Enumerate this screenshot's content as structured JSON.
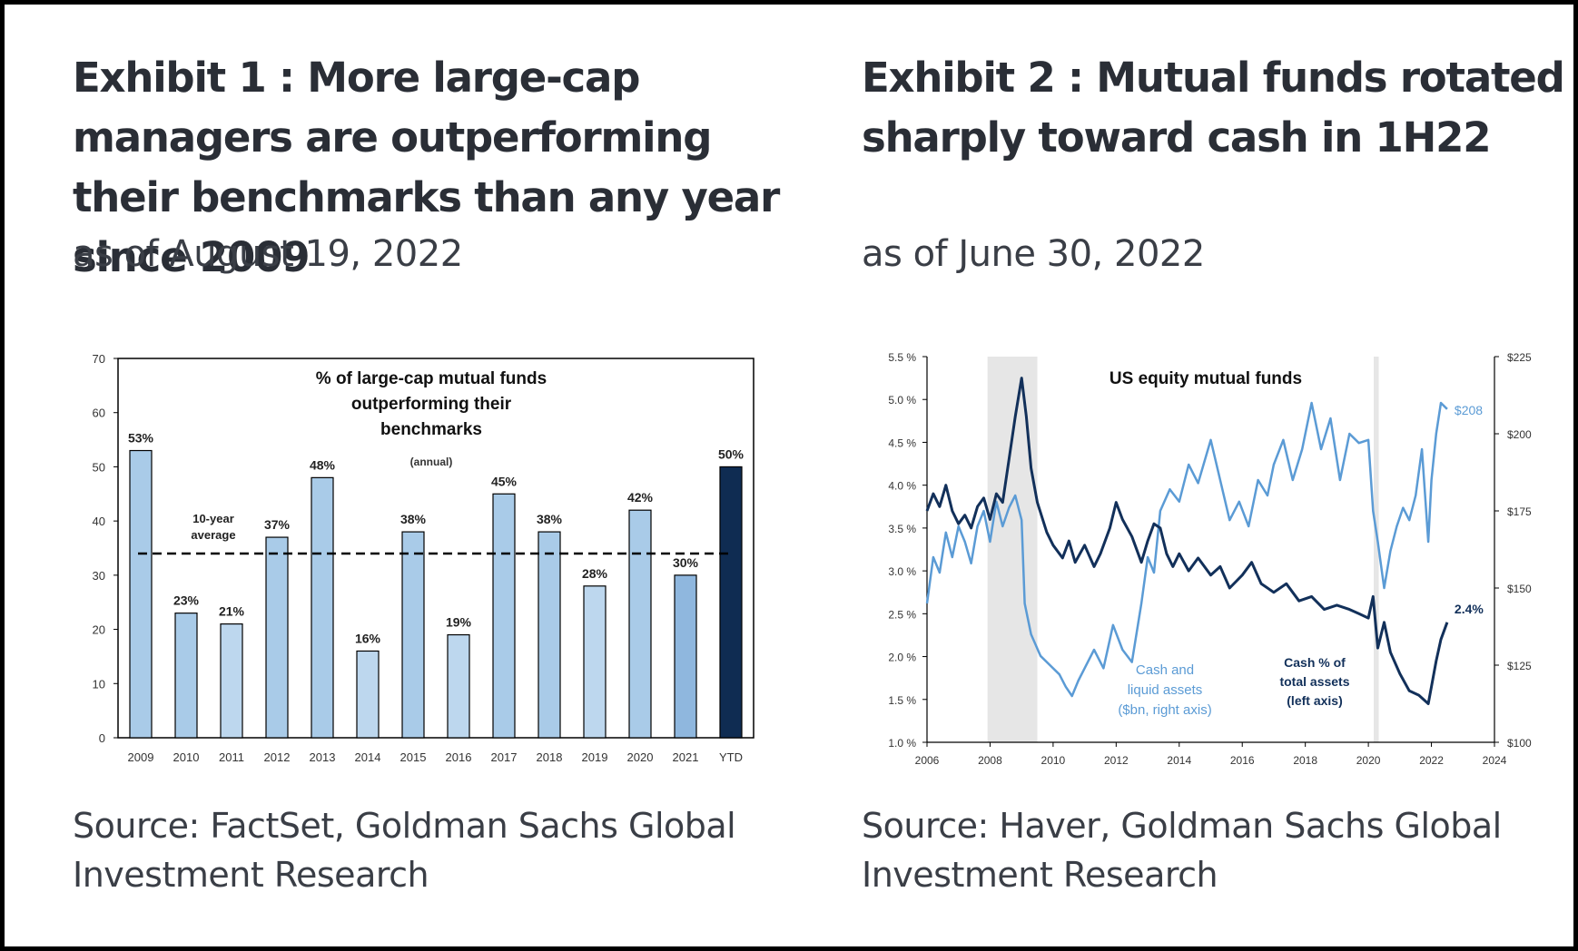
{
  "exhibit1": {
    "title": "Exhibit 1 : More large-cap managers are outperforming their benchmarks than any year since 2009",
    "asof": "as of August 19, 2022",
    "source": "Source: FactSet, Goldman Sachs Global Investment Research"
  },
  "exhibit2": {
    "title": "Exhibit 2 : Mutual funds rotated sharply toward cash in 1H22",
    "asof": "as of June 30, 2022",
    "source": "Source: Haver, Goldman Sachs Global Investment Research"
  },
  "chart_data": [
    {
      "type": "bar",
      "title_lines": [
        "% of large-cap mutual funds",
        "outperforming their",
        "benchmarks"
      ],
      "subtitle": "(annual)",
      "categories": [
        "2009",
        "2010",
        "2011",
        "2012",
        "2013",
        "2014",
        "2015",
        "2016",
        "2017",
        "2018",
        "2019",
        "2020",
        "2021",
        "YTD"
      ],
      "values": [
        53,
        23,
        21,
        37,
        48,
        16,
        38,
        19,
        45,
        38,
        28,
        42,
        30,
        50
      ],
      "value_labels": [
        "53%",
        "23%",
        "21%",
        "37%",
        "48%",
        "16%",
        "38%",
        "19%",
        "45%",
        "38%",
        "28%",
        "42%",
        "30%",
        "50%"
      ],
      "bar_colors": [
        "#a9cbe8",
        "#a9cbe8",
        "#bdd7ee",
        "#a9cbe8",
        "#a9cbe8",
        "#bdd7ee",
        "#a9cbe8",
        "#bdd7ee",
        "#a9cbe8",
        "#a9cbe8",
        "#bdd7ee",
        "#a9cbe8",
        "#8fb7de",
        "#0f2c52"
      ],
      "ylim": [
        0,
        70
      ],
      "yticks": [
        0,
        10,
        20,
        30,
        40,
        50,
        60,
        70
      ],
      "reference_line": {
        "value": 34,
        "label_lines": [
          "10-year",
          "average"
        ]
      }
    },
    {
      "type": "line",
      "title": "US equity mutual funds",
      "x_range": [
        2006,
        2024
      ],
      "xticks": [
        "2006",
        "2008",
        "2010",
        "2012",
        "2014",
        "2016",
        "2018",
        "2020",
        "2022",
        "2024"
      ],
      "left_axis": {
        "range": [
          1.0,
          5.5
        ],
        "ticks": [
          "1.0 %",
          "1.5 %",
          "2.0 %",
          "2.5 %",
          "3.0 %",
          "3.5 %",
          "4.0 %",
          "4.5 %",
          "5.0 %",
          "5.5 %"
        ]
      },
      "right_axis": {
        "range": [
          100,
          225
        ],
        "ticks": [
          "$100",
          "$125",
          "$150",
          "$175",
          "$200",
          "$225"
        ]
      },
      "recessions": [
        [
          2007.92,
          2009.5
        ],
        [
          2020.17,
          2020.33
        ]
      ],
      "series": [
        {
          "name": "Cash % of total assets (left axis)",
          "name_lines": [
            "Cash % of",
            "total assets",
            "(left axis)"
          ],
          "axis": "left",
          "color": "#12305a",
          "end_label": "2.4%",
          "points": [
            [
              2006.0,
              3.7
            ],
            [
              2006.2,
              3.9
            ],
            [
              2006.4,
              3.75
            ],
            [
              2006.6,
              4.0
            ],
            [
              2006.8,
              3.7
            ],
            [
              2007.0,
              3.55
            ],
            [
              2007.2,
              3.65
            ],
            [
              2007.4,
              3.5
            ],
            [
              2007.6,
              3.75
            ],
            [
              2007.8,
              3.85
            ],
            [
              2008.0,
              3.6
            ],
            [
              2008.2,
              3.9
            ],
            [
              2008.4,
              3.8
            ],
            [
              2008.6,
              4.3
            ],
            [
              2008.8,
              4.8
            ],
            [
              2009.0,
              5.25
            ],
            [
              2009.15,
              4.8
            ],
            [
              2009.3,
              4.2
            ],
            [
              2009.5,
              3.8
            ],
            [
              2009.8,
              3.45
            ],
            [
              2010.0,
              3.3
            ],
            [
              2010.3,
              3.15
            ],
            [
              2010.5,
              3.35
            ],
            [
              2010.7,
              3.1
            ],
            [
              2011.0,
              3.3
            ],
            [
              2011.3,
              3.05
            ],
            [
              2011.5,
              3.2
            ],
            [
              2011.8,
              3.5
            ],
            [
              2012.0,
              3.8
            ],
            [
              2012.2,
              3.6
            ],
            [
              2012.5,
              3.4
            ],
            [
              2012.8,
              3.1
            ],
            [
              2013.0,
              3.35
            ],
            [
              2013.2,
              3.55
            ],
            [
              2013.4,
              3.5
            ],
            [
              2013.6,
              3.2
            ],
            [
              2013.8,
              3.05
            ],
            [
              2014.0,
              3.2
            ],
            [
              2014.3,
              3.0
            ],
            [
              2014.6,
              3.15
            ],
            [
              2015.0,
              2.95
            ],
            [
              2015.3,
              3.05
            ],
            [
              2015.6,
              2.8
            ],
            [
              2016.0,
              2.95
            ],
            [
              2016.3,
              3.1
            ],
            [
              2016.6,
              2.85
            ],
            [
              2017.0,
              2.75
            ],
            [
              2017.4,
              2.85
            ],
            [
              2017.8,
              2.65
            ],
            [
              2018.2,
              2.7
            ],
            [
              2018.6,
              2.55
            ],
            [
              2019.0,
              2.6
            ],
            [
              2019.4,
              2.55
            ],
            [
              2019.7,
              2.5
            ],
            [
              2020.0,
              2.45
            ],
            [
              2020.15,
              2.7
            ],
            [
              2020.3,
              2.1
            ],
            [
              2020.5,
              2.4
            ],
            [
              2020.7,
              2.05
            ],
            [
              2021.0,
              1.8
            ],
            [
              2021.3,
              1.6
            ],
            [
              2021.6,
              1.55
            ],
            [
              2021.9,
              1.45
            ],
            [
              2022.0,
              1.65
            ],
            [
              2022.15,
              1.95
            ],
            [
              2022.3,
              2.2
            ],
            [
              2022.5,
              2.4
            ]
          ]
        },
        {
          "name": "Cash and liquid assets ($bn, right axis)",
          "name_lines": [
            "Cash and",
            "liquid assets",
            "($bn, right axis)"
          ],
          "axis": "right",
          "color": "#5b9bd5",
          "end_label": "$208",
          "points": [
            [
              2006.0,
              145
            ],
            [
              2006.2,
              160
            ],
            [
              2006.4,
              155
            ],
            [
              2006.6,
              168
            ],
            [
              2006.8,
              160
            ],
            [
              2007.0,
              170
            ],
            [
              2007.2,
              165
            ],
            [
              2007.4,
              158
            ],
            [
              2007.6,
              170
            ],
            [
              2007.8,
              175
            ],
            [
              2008.0,
              165
            ],
            [
              2008.2,
              178
            ],
            [
              2008.4,
              170
            ],
            [
              2008.6,
              176
            ],
            [
              2008.8,
              180
            ],
            [
              2009.0,
              172
            ],
            [
              2009.1,
              145
            ],
            [
              2009.3,
              135
            ],
            [
              2009.6,
              128
            ],
            [
              2009.9,
              125
            ],
            [
              2010.2,
              122
            ],
            [
              2010.4,
              118
            ],
            [
              2010.6,
              115
            ],
            [
              2010.8,
              120
            ],
            [
              2011.0,
              124
            ],
            [
              2011.3,
              130
            ],
            [
              2011.6,
              124
            ],
            [
              2011.9,
              138
            ],
            [
              2012.2,
              130
            ],
            [
              2012.5,
              126
            ],
            [
              2012.8,
              145
            ],
            [
              2013.0,
              160
            ],
            [
              2013.2,
              155
            ],
            [
              2013.4,
              175
            ],
            [
              2013.7,
              182
            ],
            [
              2014.0,
              178
            ],
            [
              2014.3,
              190
            ],
            [
              2014.6,
              184
            ],
            [
              2015.0,
              198
            ],
            [
              2015.3,
              185
            ],
            [
              2015.6,
              172
            ],
            [
              2015.9,
              178
            ],
            [
              2016.2,
              170
            ],
            [
              2016.5,
              185
            ],
            [
              2016.8,
              180
            ],
            [
              2017.0,
              190
            ],
            [
              2017.3,
              198
            ],
            [
              2017.6,
              185
            ],
            [
              2017.9,
              195
            ],
            [
              2018.2,
              210
            ],
            [
              2018.5,
              195
            ],
            [
              2018.8,
              205
            ],
            [
              2019.1,
              185
            ],
            [
              2019.4,
              200
            ],
            [
              2019.7,
              197
            ],
            [
              2020.0,
              198
            ],
            [
              2020.15,
              175
            ],
            [
              2020.3,
              165
            ],
            [
              2020.5,
              150
            ],
            [
              2020.7,
              162
            ],
            [
              2020.9,
              170
            ],
            [
              2021.1,
              176
            ],
            [
              2021.3,
              172
            ],
            [
              2021.5,
              180
            ],
            [
              2021.7,
              195
            ],
            [
              2021.9,
              165
            ],
            [
              2022.0,
              185
            ],
            [
              2022.15,
              200
            ],
            [
              2022.3,
              210
            ],
            [
              2022.5,
              208
            ]
          ]
        }
      ]
    }
  ]
}
